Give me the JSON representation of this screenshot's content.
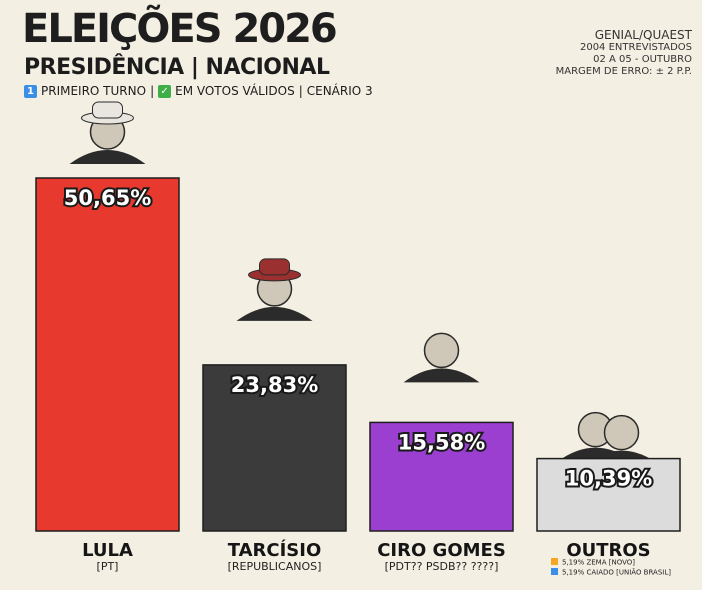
{
  "header": {
    "title": "ELEIÇÕES 2026",
    "subtitle": "PRESIDÊNCIA | NACIONAL",
    "tag_round": "PRIMEIRO TURNO",
    "tag_votes": "EM VOTOS VÁLIDOS",
    "tag_scenario": "CENÁRIO 3"
  },
  "source": {
    "name": "GENIAL/QUAEST",
    "sample": "2004 ENTREVISTADOS",
    "dates": "02 A 05 - OUTUBRO",
    "margin": "MARGEM DE ERRO: ± 2 P.P."
  },
  "colors": {
    "lula": "#e8392f",
    "tarcisio": "#3b3b3b",
    "ciro": "#9b3fd0",
    "outros": "#dcdcdc",
    "zema": "#f5a623",
    "caiado": "#3a8ee6"
  },
  "chart_data": {
    "type": "bar",
    "title": "ELEIÇÕES 2026",
    "categories": [
      "LULA",
      "TARCÍSIO",
      "CIRO GOMES",
      "OUTROS"
    ],
    "parties": [
      "[PT]",
      "[REPUBLICANOS]",
      "[PDT?? PSDB?? ????]",
      ""
    ],
    "values": [
      50.65,
      23.83,
      15.58,
      10.39
    ],
    "value_labels": [
      "50,65%",
      "23,83%",
      "15,58%",
      "10,39%"
    ],
    "ylim": [
      0,
      55
    ],
    "outros_breakdown": [
      {
        "label": "5,19% ZEMA [NOVO]",
        "icon": "orange-square"
      },
      {
        "label": "5,19% CAIADO [UNIÃO BRASIL]",
        "icon": "blue-square"
      }
    ]
  }
}
